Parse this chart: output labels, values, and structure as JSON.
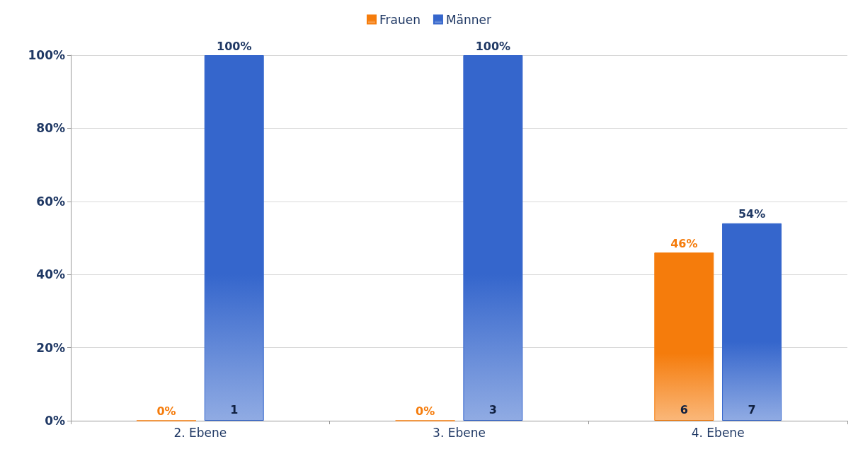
{
  "chart_data": {
    "type": "bar",
    "categories": [
      "2. Ebene",
      "3. Ebene",
      "4. Ebene"
    ],
    "series": [
      {
        "name": "Frauen",
        "color": "#f57c0c",
        "values": [
          0,
          0,
          46
        ],
        "value_labels": [
          "0%",
          "0%",
          "46%"
        ]
      },
      {
        "name": "Männer",
        "color": "#3566cc",
        "values": [
          100,
          100,
          54
        ],
        "value_labels": [
          "100%",
          "100%",
          "54%"
        ]
      }
    ],
    "ylim": [
      0,
      100
    ],
    "yticks": [
      {
        "value": 0,
        "label": "0%"
      },
      {
        "value": 20,
        "label": "20%"
      },
      {
        "value": 40,
        "label": "40%"
      },
      {
        "value": 60,
        "label": "60%"
      },
      {
        "value": 80,
        "label": "80%"
      },
      {
        "value": 100,
        "label": "100%"
      }
    ],
    "annotations": [
      "1",
      "3",
      "6",
      "7"
    ],
    "grid": "y",
    "legend": "top"
  }
}
